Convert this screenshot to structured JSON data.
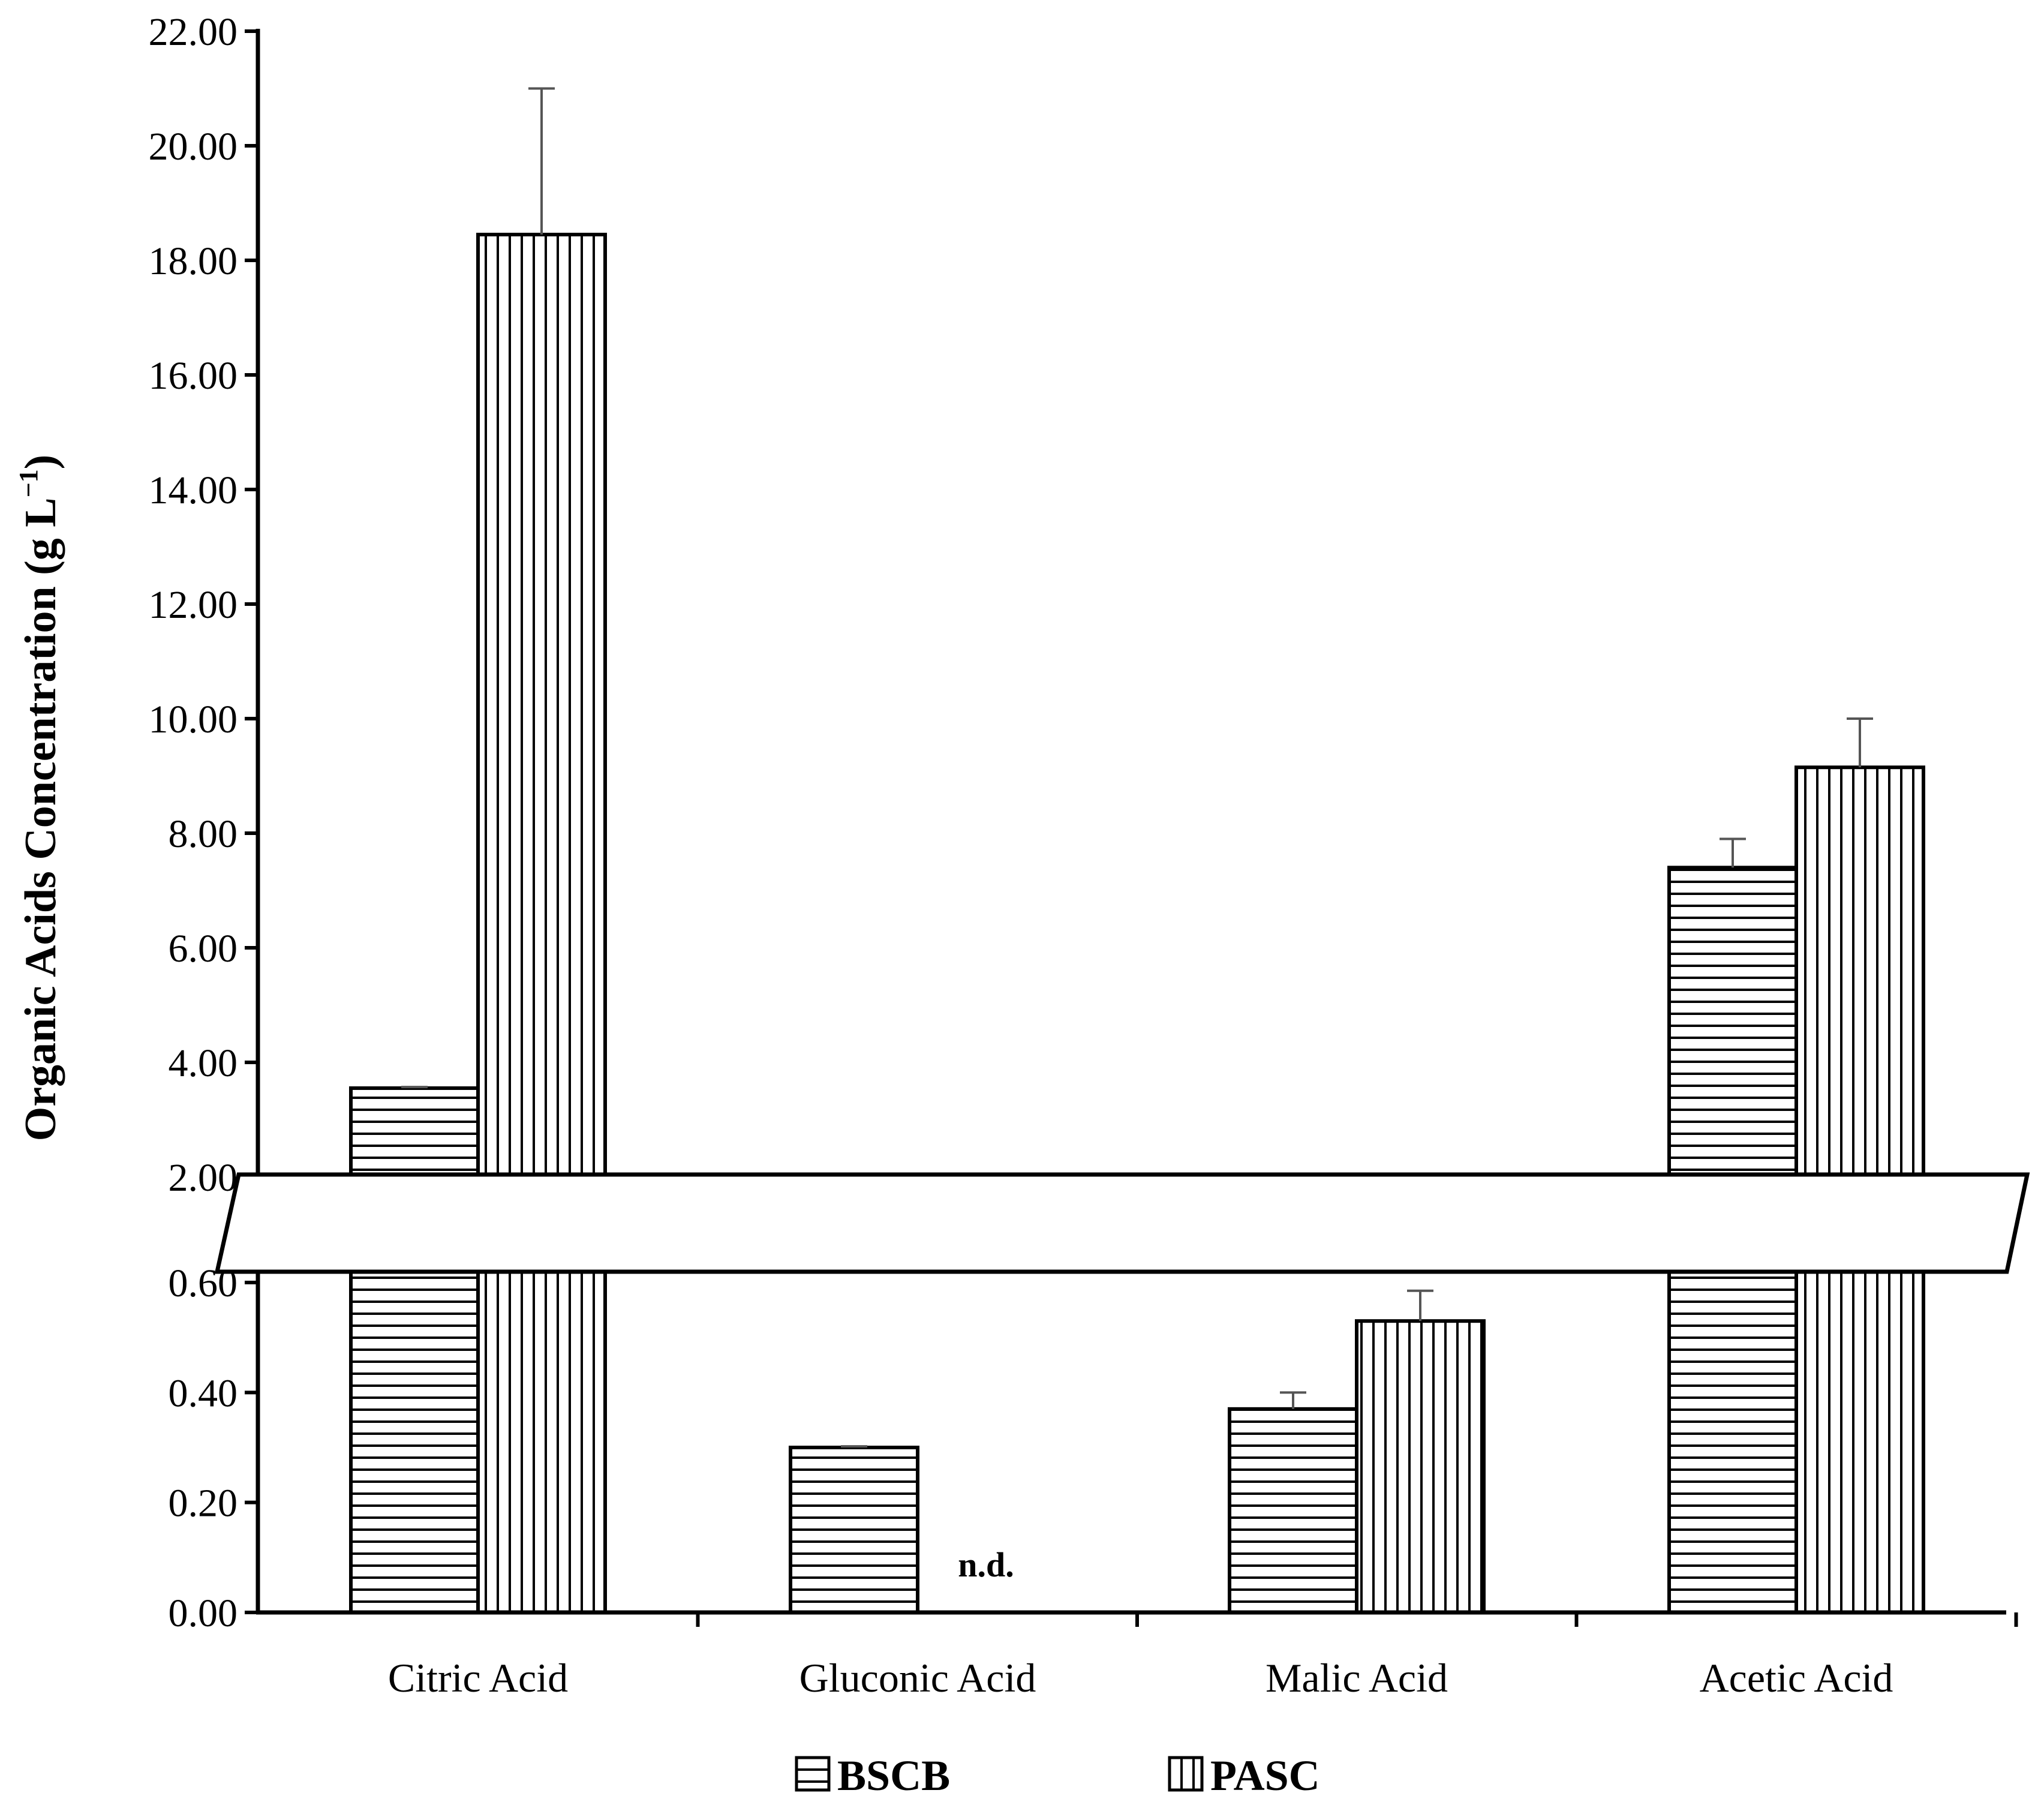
{
  "chart_data": {
    "type": "bar",
    "title": "",
    "xlabel": "",
    "ylabel": "Organic Acids Concentration (g L",
    "ylabel_superscript": "−1",
    "ylabel_suffix": ")",
    "broken_axis": true,
    "lower_segment": {
      "ylim": [
        0.0,
        0.6
      ],
      "ticks": [
        "0.00",
        "0.20",
        "0.40",
        "0.60"
      ]
    },
    "upper_segment": {
      "ylim": [
        2.0,
        22.0
      ],
      "ticks": [
        "2.00",
        "4.00",
        "6.00",
        "8.00",
        "10.00",
        "12.00",
        "14.00",
        "16.00",
        "18.00",
        "20.00",
        "22.00"
      ]
    },
    "categories": [
      "Citric Acid",
      "Gluconic Acid",
      "Malic Acid",
      "Acetic Acid"
    ],
    "series": [
      {
        "name": "BSCB",
        "pattern": "horizontal-lines",
        "values": [
          3.55,
          0.3,
          0.37,
          7.4
        ],
        "errors": [
          0.02,
          0.002,
          0.03,
          0.5
        ]
      },
      {
        "name": "PASC",
        "pattern": "vertical-lines",
        "values": [
          18.45,
          null,
          0.53,
          9.15
        ],
        "errors": [
          2.55,
          null,
          0.055,
          0.85
        ]
      }
    ],
    "annotations": [
      {
        "text": "n.d.",
        "category": "Gluconic Acid",
        "series": "PASC"
      }
    ],
    "legend": [
      "BSCB",
      "PASC"
    ],
    "legend_position": "bottom-center",
    "grid": false
  }
}
